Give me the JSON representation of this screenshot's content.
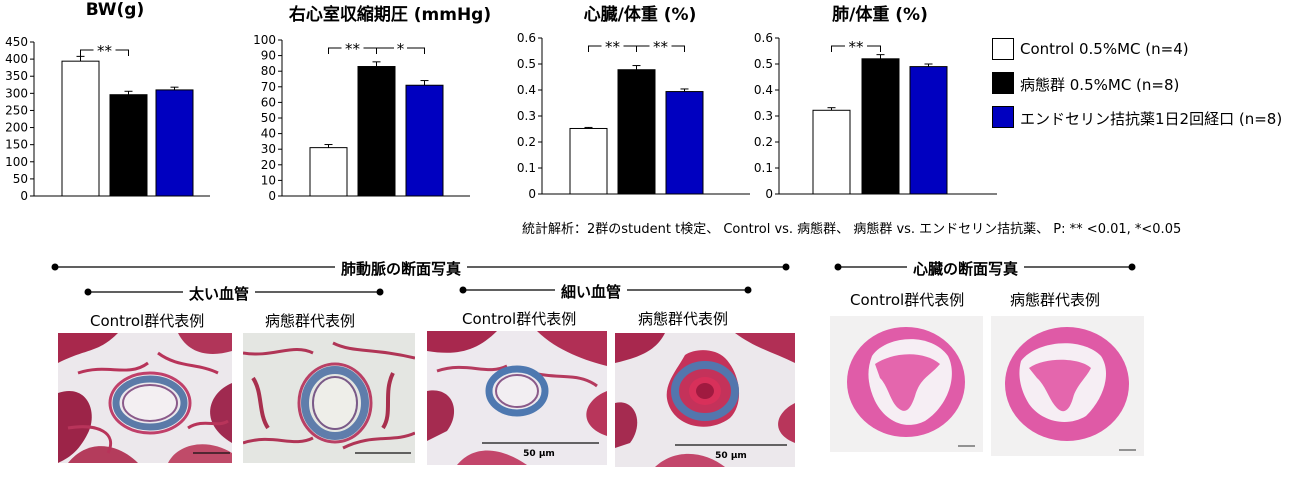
{
  "chart_data": [
    {
      "type": "bar",
      "title": "BW(g)",
      "categories": [
        "Control 0.5%MC (n=4)",
        "病態群 0.5%MC (n=8)",
        "エンドセリン拮抗薬1日2回経口 (n=8)"
      ],
      "values": [
        394,
        296,
        310
      ],
      "errors": [
        14,
        10,
        8
      ],
      "ylim": [
        0,
        450
      ],
      "yticks": [
        "0",
        "50",
        "100",
        "150",
        "200",
        "250",
        "300",
        "350",
        "400",
        "450"
      ],
      "significance": [
        {
          "from": 0,
          "to": 1,
          "label": "**"
        }
      ]
    },
    {
      "type": "bar",
      "title": "右心室収縮期圧 (mmHg)",
      "categories": [
        "Control 0.5%MC (n=4)",
        "病態群 0.5%MC (n=8)",
        "エンドセリン拮抗薬1日2回経口 (n=8)"
      ],
      "values": [
        31,
        83,
        71
      ],
      "errors": [
        2,
        3,
        3
      ],
      "ylim": [
        0,
        100
      ],
      "yticks": [
        "0",
        "10",
        "20",
        "30",
        "40",
        "50",
        "60",
        "70",
        "80",
        "90",
        "100"
      ],
      "significance": [
        {
          "from": 0,
          "to": 1,
          "label": "**"
        },
        {
          "from": 1,
          "to": 2,
          "label": "*"
        }
      ]
    },
    {
      "type": "bar",
      "title": "心臓/体重 (%)",
      "categories": [
        "Control 0.5%MC (n=4)",
        "病態群 0.5%MC (n=8)",
        "エンドセリン拮抗薬1日2回経口 (n=8)"
      ],
      "values": [
        0.252,
        0.478,
        0.394
      ],
      "errors": [
        0.004,
        0.016,
        0.01
      ],
      "ylim": [
        0,
        0.6
      ],
      "yticks": [
        "0",
        "0.1",
        "0.2",
        "0.3",
        "0.4",
        "0.5",
        "0.6"
      ],
      "significance": [
        {
          "from": 0,
          "to": 1,
          "label": "**"
        },
        {
          "from": 1,
          "to": 2,
          "label": "**"
        }
      ]
    },
    {
      "type": "bar",
      "title": "肺/体重 (%)",
      "categories": [
        "Control 0.5%MC (n=4)",
        "病態群 0.5%MC (n=8)",
        "エンドセリン拮抗薬1日2回経口 (n=8)"
      ],
      "values": [
        0.322,
        0.52,
        0.49
      ],
      "errors": [
        0.01,
        0.016,
        0.01
      ],
      "ylim": [
        0,
        0.6
      ],
      "yticks": [
        "0",
        "0.1",
        "0.2",
        "0.3",
        "0.4",
        "0.5",
        "0.6"
      ],
      "significance": [
        {
          "from": 0,
          "to": 1,
          "label": "**"
        }
      ]
    }
  ],
  "legend": [
    {
      "label": "Control 0.5%MC (n=4)",
      "color": "#ffffff"
    },
    {
      "label": "病態群 0.5%MC (n=8)",
      "color": "#000000"
    },
    {
      "label": "エンドセリン拮抗薬1日2回経口 (n=8)",
      "color": "#0000c0"
    }
  ],
  "stats_note": "統計解析：2群のstudent t検定、 Control vs. 病態群、 病態群 vs. エンドセリン拮抗薬、 P: ** <0.01, *<0.05",
  "sections": {
    "lung": {
      "title": "肺動脈の断面写真",
      "large": {
        "title": "太い血管",
        "control": "Control群代表例",
        "disease": "病態群代表例"
      },
      "small": {
        "title": "細い血管",
        "control": "Control群代表例",
        "disease": "病態群代表例",
        "scale": "50 μm"
      }
    },
    "heart": {
      "title": "心臓の断面写真",
      "control": "Control群代表例",
      "disease": "病態群代表例"
    }
  },
  "colors": {
    "control": "#ffffff",
    "disease": "#000000",
    "treatment": "#0000c0"
  }
}
